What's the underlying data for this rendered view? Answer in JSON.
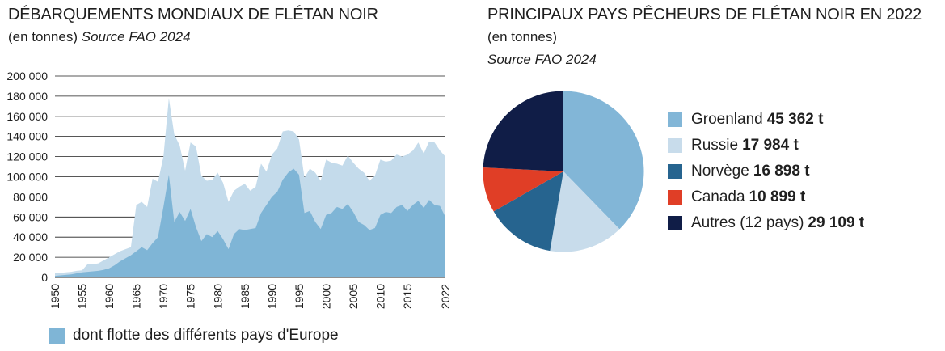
{
  "chart_data": [
    {
      "type": "area",
      "title": "DÉBARQUEMENTS MONDIAUX DE FLÉTAN NOIR",
      "subtitle_plain": "(en tonnes)",
      "subtitle_source": "Source FAO 2024",
      "ylim": [
        0,
        200000
      ],
      "y_ticks": [
        "0",
        "20 000",
        "40 000",
        "60 000",
        "80 000",
        "100 000",
        "120 000",
        "140 000",
        "160 000",
        "180 000",
        "200 000"
      ],
      "y_tick_values": [
        0,
        20000,
        40000,
        60000,
        80000,
        100000,
        120000,
        140000,
        160000,
        180000,
        200000
      ],
      "x_ticks": [
        "1950",
        "1955",
        "1960",
        "1965",
        "1970",
        "1975",
        "1980",
        "1985",
        "1990",
        "1995",
        "2000",
        "2005",
        "2010",
        "2015",
        "2022"
      ],
      "x_tick_values": [
        1950,
        1955,
        1960,
        1965,
        1970,
        1975,
        1980,
        1985,
        1990,
        1995,
        2000,
        2005,
        2010,
        2015,
        2022
      ],
      "grid": true,
      "colors": {
        "total": "#c4dbeb",
        "europe": "#7fb5d6"
      },
      "x": [
        1950,
        1951,
        1952,
        1953,
        1954,
        1955,
        1956,
        1957,
        1958,
        1959,
        1960,
        1961,
        1962,
        1963,
        1964,
        1965,
        1966,
        1967,
        1968,
        1969,
        1970,
        1971,
        1972,
        1973,
        1974,
        1975,
        1976,
        1977,
        1978,
        1979,
        1980,
        1981,
        1982,
        1983,
        1984,
        1985,
        1986,
        1987,
        1988,
        1989,
        1990,
        1991,
        1992,
        1993,
        1994,
        1995,
        1996,
        1997,
        1998,
        1999,
        2000,
        2001,
        2002,
        2003,
        2004,
        2005,
        2006,
        2007,
        2008,
        2009,
        2010,
        2011,
        2012,
        2013,
        2014,
        2015,
        2016,
        2017,
        2018,
        2019,
        2020,
        2021,
        2022
      ],
      "series": [
        {
          "values": [
            4000,
            4500,
            5000,
            5500,
            6500,
            7000,
            13000,
            13000,
            14000,
            17000,
            20000,
            23000,
            26000,
            28000,
            30000,
            72000,
            75000,
            70000,
            98000,
            95000,
            120000,
            178000,
            142000,
            131000,
            106000,
            134000,
            130000,
            101000,
            96000,
            97000,
            104000,
            94000,
            75000,
            86000,
            90000,
            93000,
            86000,
            90000,
            113000,
            105000,
            122000,
            128000,
            145000,
            146000,
            145000,
            137000,
            99000,
            108000,
            104000,
            96000,
            117000,
            114000,
            113000,
            111000,
            121000,
            114000,
            108000,
            104000,
            96000,
            101000,
            117000,
            115000,
            116000,
            122000,
            120000,
            122000,
            126000,
            134000,
            123000,
            135000,
            134000,
            126000,
            120000
          ]
        },
        {
          "name": "dont flotte des différents pays d'Europe",
          "values": [
            1500,
            2000,
            2500,
            3000,
            4000,
            5000,
            5500,
            6000,
            6500,
            7500,
            9000,
            12000,
            16000,
            19000,
            22000,
            26000,
            30000,
            27000,
            34000,
            40000,
            70000,
            102000,
            55000,
            65000,
            56000,
            68000,
            50000,
            36000,
            43000,
            40000,
            46000,
            38000,
            28000,
            43000,
            48000,
            47000,
            48000,
            49000,
            64000,
            72000,
            80000,
            85000,
            97000,
            104000,
            108000,
            102000,
            64000,
            66000,
            55000,
            48000,
            62000,
            64000,
            70000,
            68000,
            73000,
            65000,
            55000,
            52000,
            47000,
            49000,
            62000,
            65000,
            64000,
            70000,
            72000,
            66000,
            72000,
            76000,
            69000,
            77000,
            72000,
            71000,
            60000
          ]
        }
      ]
    },
    {
      "type": "pie",
      "title": "PRINCIPAUX PAYS PÊCHEURS DE FLÉTAN NOIR EN 2022",
      "subtitle_plain": "(en tonnes)",
      "subtitle_source": "Source FAO 2024",
      "slices": [
        {
          "label": "Groenland",
          "value_text": "45 362 t",
          "value": 45362,
          "color": "#82b6d7"
        },
        {
          "label": "Russie",
          "value_text": "17 984 t",
          "value": 17984,
          "color": "#c8dceb"
        },
        {
          "label": "Norvège",
          "value_text": "16 898 t",
          "value": 16898,
          "color": "#26648f"
        },
        {
          "label": "Canada",
          "value_text": "10 899 t",
          "value": 10899,
          "color": "#e03e26"
        },
        {
          "label": "Autres (12 pays)",
          "value_text": "29 109 t",
          "value": 29109,
          "color": "#101d47"
        }
      ]
    }
  ]
}
